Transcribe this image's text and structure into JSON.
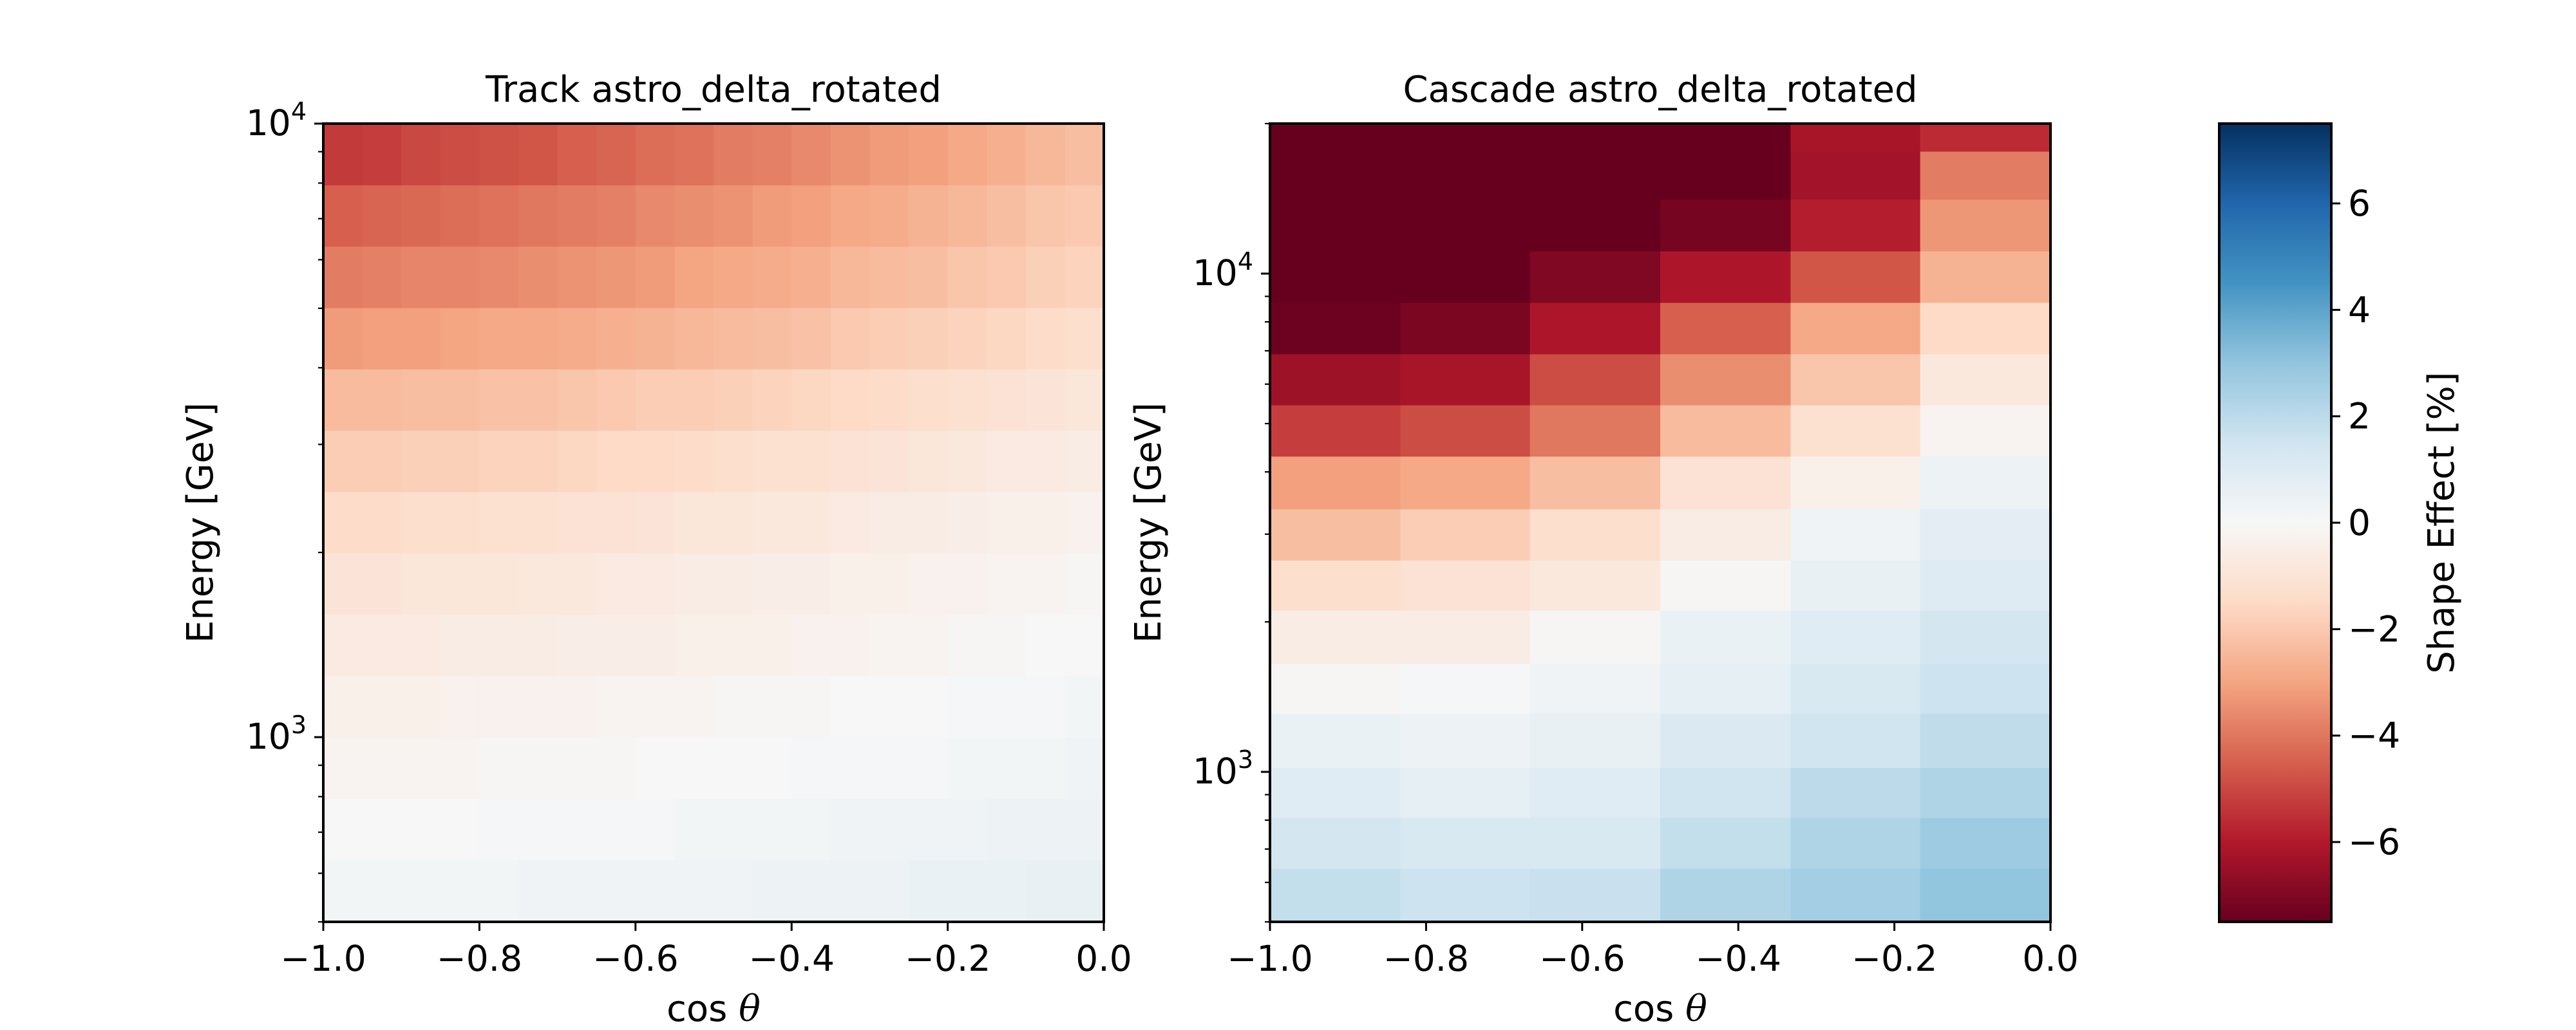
{
  "colorbar": {
    "label": "Shape Effect [%]",
    "vmin": -7.5,
    "vmax": 7.5,
    "ticks": [
      6,
      4,
      2,
      0,
      -2,
      -4,
      -6
    ],
    "tick_labels": [
      "6",
      "4",
      "2",
      "0",
      "−2",
      "−4",
      "−6"
    ],
    "colormap": "RdBu",
    "colormap_stops": [
      "#67001f",
      "#b2182b",
      "#d6604d",
      "#f4a582",
      "#fddbc7",
      "#f7f7f7",
      "#d1e5f0",
      "#92c5de",
      "#4393c3",
      "#2166ac",
      "#053061"
    ]
  },
  "chart_data": [
    {
      "type": "heatmap",
      "title": "Track astro_delta_rotated",
      "xlabel": "cos θ",
      "xlabel_parts": [
        "cos",
        "θ"
      ],
      "ylabel": "Energy [GeV]",
      "xlim": [
        -1.0,
        0.0
      ],
      "ylim": [
        500,
        10000
      ],
      "yscale": "log",
      "x_ticks": [
        -1.0,
        -0.8,
        -0.6,
        -0.4,
        -0.2,
        0.0
      ],
      "x_tick_labels": [
        "−1.0",
        "−0.8",
        "−0.6",
        "−0.4",
        "−0.2",
        "0.0"
      ],
      "y_ticks": [
        {
          "value": 1000,
          "base": "10",
          "exp": "3"
        },
        {
          "value": 10000,
          "base": "10",
          "exp": "4"
        }
      ],
      "x_edges": [
        -1.0,
        -0.95,
        -0.9,
        -0.85,
        -0.8,
        -0.75,
        -0.7,
        -0.65,
        -0.6,
        -0.55,
        -0.5,
        -0.45,
        -0.4,
        -0.35,
        -0.3,
        -0.25,
        -0.2,
        -0.15,
        -0.1,
        -0.05,
        0.0
      ],
      "y_edges": [
        500,
        631,
        794,
        1000,
        1259,
        1585,
        1995,
        2512,
        3162,
        3981,
        5012,
        6310,
        7943,
        10000
      ],
      "values": [
        [
          0.2,
          0.2,
          0.2,
          0.2,
          0.2,
          0.3,
          0.3,
          0.3,
          0.3,
          0.3,
          0.3,
          0.4,
          0.4,
          0.4,
          0.4,
          0.5,
          0.5,
          0.5,
          0.6,
          0.6
        ],
        [
          0.0,
          0.0,
          0.0,
          0.0,
          0.1,
          0.1,
          0.1,
          0.1,
          0.1,
          0.2,
          0.2,
          0.2,
          0.2,
          0.3,
          0.3,
          0.3,
          0.3,
          0.4,
          0.4,
          0.4
        ],
        [
          -0.2,
          -0.2,
          -0.2,
          -0.2,
          -0.1,
          -0.1,
          -0.1,
          -0.1,
          0.0,
          0.0,
          0.0,
          0.0,
          0.1,
          0.1,
          0.1,
          0.1,
          0.2,
          0.2,
          0.2,
          0.3
        ],
        [
          -0.4,
          -0.4,
          -0.4,
          -0.3,
          -0.3,
          -0.3,
          -0.3,
          -0.2,
          -0.2,
          -0.2,
          -0.1,
          -0.1,
          -0.1,
          0.0,
          0.0,
          0.0,
          0.1,
          0.1,
          0.1,
          0.2
        ],
        [
          -0.7,
          -0.7,
          -0.7,
          -0.6,
          -0.6,
          -0.6,
          -0.5,
          -0.5,
          -0.5,
          -0.4,
          -0.4,
          -0.4,
          -0.3,
          -0.3,
          -0.2,
          -0.2,
          -0.1,
          -0.1,
          0.0,
          0.0
        ],
        [
          -1.0,
          -1.0,
          -0.9,
          -0.9,
          -0.9,
          -0.8,
          -0.8,
          -0.7,
          -0.7,
          -0.6,
          -0.6,
          -0.5,
          -0.5,
          -0.4,
          -0.4,
          -0.3,
          -0.3,
          -0.2,
          -0.2,
          -0.1
        ],
        [
          -1.4,
          -1.4,
          -1.3,
          -1.3,
          -1.2,
          -1.2,
          -1.1,
          -1.1,
          -1.0,
          -0.9,
          -0.9,
          -0.8,
          -0.8,
          -0.7,
          -0.6,
          -0.6,
          -0.5,
          -0.4,
          -0.4,
          -0.3
        ],
        [
          -1.9,
          -1.9,
          -1.8,
          -1.8,
          -1.7,
          -1.7,
          -1.6,
          -1.5,
          -1.5,
          -1.4,
          -1.3,
          -1.2,
          -1.2,
          -1.1,
          -1.0,
          -0.9,
          -0.8,
          -0.7,
          -0.7,
          -0.6
        ],
        [
          -2.4,
          -2.4,
          -2.3,
          -2.3,
          -2.2,
          -2.2,
          -2.1,
          -2.0,
          -1.9,
          -1.9,
          -1.8,
          -1.7,
          -1.6,
          -1.5,
          -1.4,
          -1.3,
          -1.2,
          -1.1,
          -1.0,
          -0.9
        ],
        [
          -3.2,
          -3.1,
          -3.1,
          -3.0,
          -2.9,
          -2.9,
          -2.8,
          -2.7,
          -2.6,
          -2.5,
          -2.4,
          -2.3,
          -2.2,
          -2.0,
          -1.9,
          -1.8,
          -1.7,
          -1.6,
          -1.4,
          -1.3
        ],
        [
          -3.9,
          -3.8,
          -3.7,
          -3.7,
          -3.6,
          -3.5,
          -3.4,
          -3.3,
          -3.2,
          -3.0,
          -2.9,
          -2.8,
          -2.7,
          -2.5,
          -2.4,
          -2.3,
          -2.1,
          -2.0,
          -1.8,
          -1.7
        ],
        [
          -4.5,
          -4.4,
          -4.3,
          -4.2,
          -4.1,
          -4.0,
          -3.9,
          -3.8,
          -3.6,
          -3.5,
          -3.4,
          -3.2,
          -3.1,
          -2.9,
          -2.8,
          -2.6,
          -2.5,
          -2.3,
          -2.1,
          -2.0
        ],
        [
          -5.3,
          -5.2,
          -5.0,
          -4.9,
          -4.8,
          -4.7,
          -4.5,
          -4.4,
          -4.2,
          -4.1,
          -3.9,
          -3.8,
          -3.6,
          -3.4,
          -3.2,
          -3.1,
          -2.9,
          -2.7,
          -2.5,
          -2.3
        ]
      ]
    },
    {
      "type": "heatmap",
      "title": "Cascade astro_delta_rotated",
      "xlabel": "cos θ",
      "xlabel_parts": [
        "cos",
        "θ"
      ],
      "ylabel": "Energy [GeV]",
      "xlim": [
        -1.0,
        0.0
      ],
      "ylim": [
        500,
        20000
      ],
      "yscale": "log",
      "x_ticks": [
        -1.0,
        -0.8,
        -0.6,
        -0.4,
        -0.2,
        0.0
      ],
      "x_tick_labels": [
        "−1.0",
        "−0.8",
        "−0.6",
        "−0.4",
        "−0.2",
        "0.0"
      ],
      "y_ticks": [
        {
          "value": 1000,
          "base": "10",
          "exp": "3"
        },
        {
          "value": 10000,
          "base": "10",
          "exp": "4"
        }
      ],
      "x_edges": [
        -1.0,
        -0.833,
        -0.667,
        -0.5,
        -0.333,
        -0.167,
        0.0
      ],
      "y_edges": [
        500,
        640,
        810,
        1020,
        1310,
        1650,
        2110,
        2660,
        3370,
        4300,
        5450,
        6900,
        8750,
        11100,
        14100,
        17600,
        20000
      ],
      "values": [
        [
          1.8,
          1.6,
          1.7,
          2.3,
          2.6,
          3.0
        ],
        [
          1.4,
          1.2,
          1.2,
          1.8,
          2.3,
          2.7
        ],
        [
          0.9,
          0.7,
          0.9,
          1.5,
          2.0,
          2.3
        ],
        [
          0.5,
          0.4,
          0.6,
          1.1,
          1.5,
          1.9
        ],
        [
          -0.1,
          0.1,
          0.3,
          0.7,
          1.2,
          1.6
        ],
        [
          -0.6,
          -0.6,
          -0.1,
          0.5,
          0.9,
          1.4
        ],
        [
          -1.3,
          -1.1,
          -0.8,
          -0.1,
          0.6,
          1.0
        ],
        [
          -2.3,
          -1.9,
          -1.3,
          -0.6,
          0.3,
          0.8
        ],
        [
          -3.1,
          -2.9,
          -2.3,
          -1.1,
          -0.4,
          0.4
        ],
        [
          -5.2,
          -4.9,
          -4.0,
          -2.4,
          -1.2,
          -0.2
        ],
        [
          -6.4,
          -6.2,
          -4.9,
          -3.5,
          -2.1,
          -0.8
        ],
        [
          -7.4,
          -7.1,
          -6.1,
          -4.5,
          -2.9,
          -1.5
        ],
        [
          -7.5,
          -7.5,
          -7.0,
          -6.1,
          -4.7,
          -2.6
        ],
        [
          -7.5,
          -7.5,
          -7.5,
          -7.2,
          -5.9,
          -3.3
        ],
        [
          -7.5,
          -7.5,
          -7.5,
          -7.5,
          -6.3,
          -3.9
        ],
        [
          -7.5,
          -7.5,
          -7.5,
          -7.5,
          -6.2,
          -5.6
        ]
      ]
    }
  ]
}
